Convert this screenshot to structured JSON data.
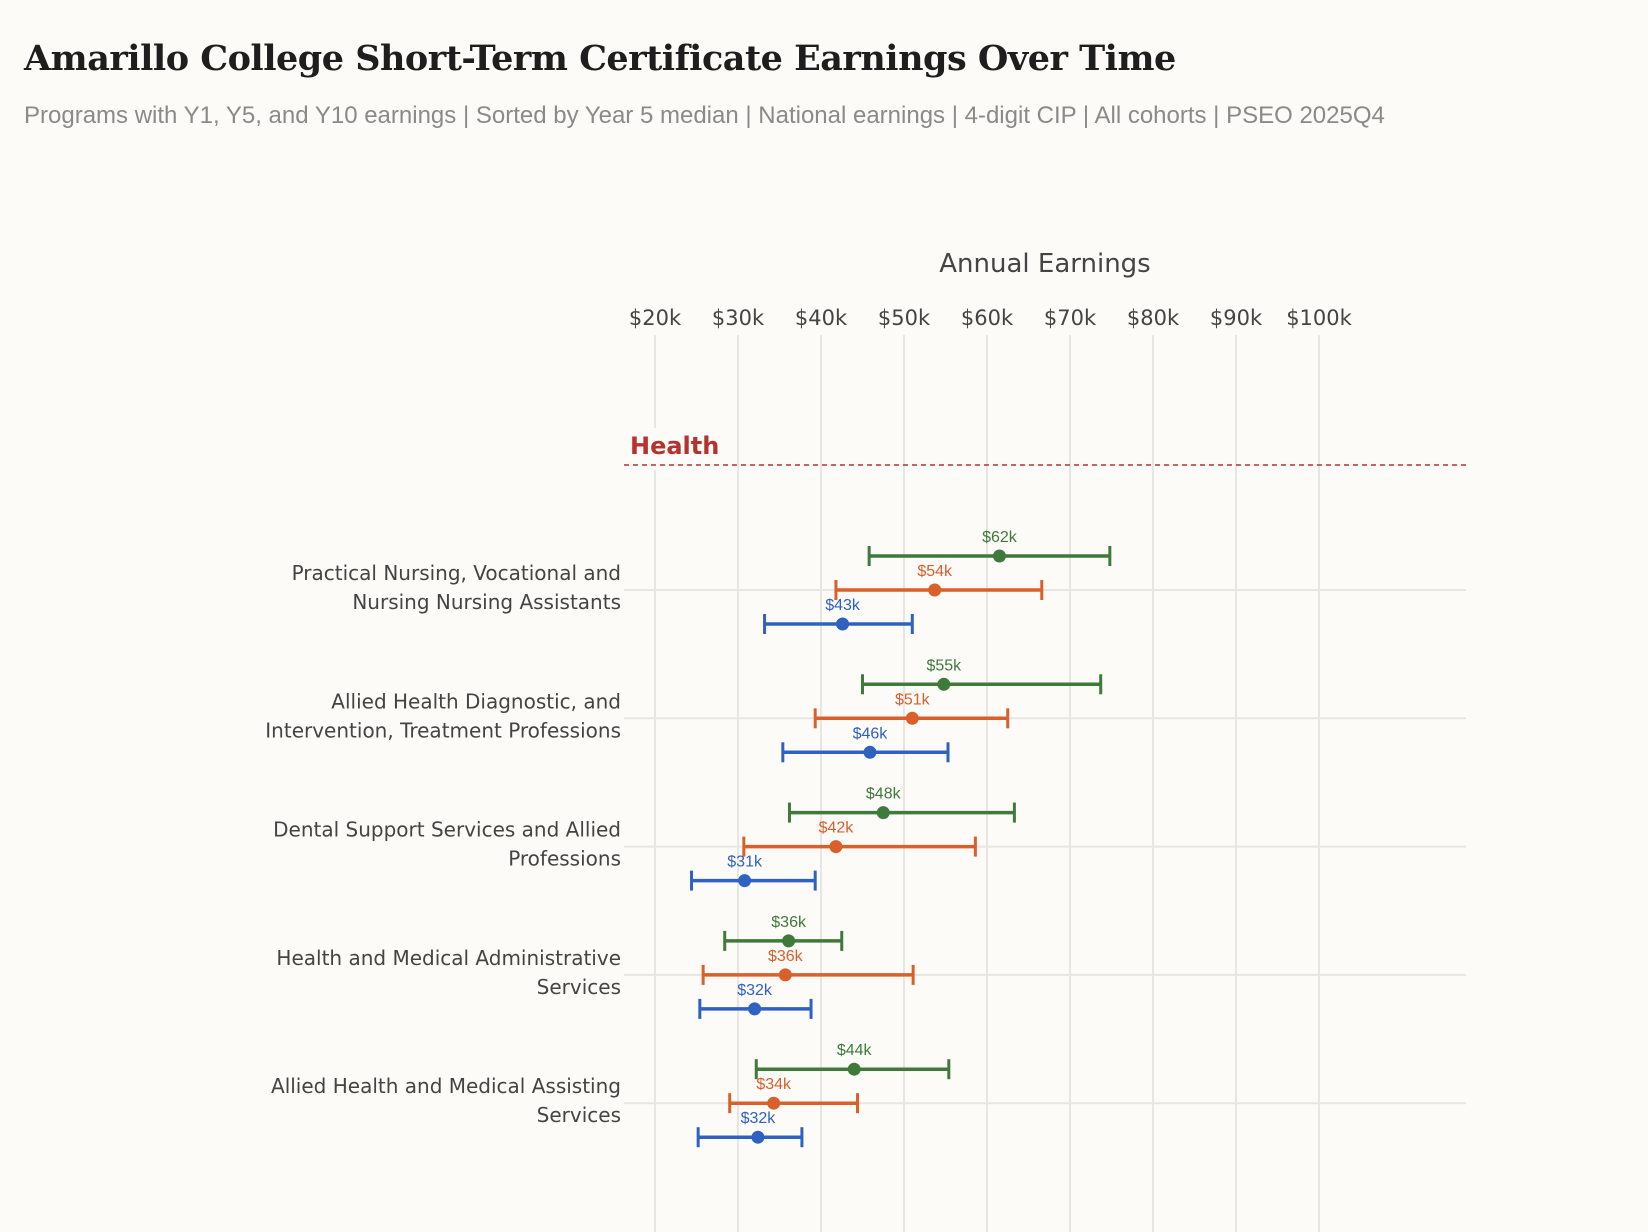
{
  "title": "Amarillo College Short-Term Certificate Earnings Over Time",
  "subtitle": "Programs with Y1, Y5, and Y10 earnings | Sorted by Year 5 median | National earnings | 4-digit CIP | All cohorts | PSEO 2025Q4",
  "chart_data": {
    "type": "errorbar",
    "xlabel": "Annual Earnings",
    "xlim": [
      20000,
      110000
    ],
    "x_ticks": [
      20000,
      30000,
      40000,
      50000,
      60000,
      70000,
      80000,
      90000,
      100000
    ],
    "x_tick_labels": [
      "$20k",
      "$30k",
      "$40k",
      "$50k",
      "$60k",
      "$70k",
      "$80k",
      "$90k",
      "$100k"
    ],
    "x_axis_position": "top",
    "grid": true,
    "group": "Health",
    "colors": {
      "y10": "#3f7a3a",
      "y5": "#d95f2b",
      "y1": "#2f62c0",
      "group": "#b5332e"
    },
    "programs": [
      {
        "label": [
          "Practical Nursing, Vocational and",
          "Nursing Nursing Assistants"
        ],
        "y10": {
          "low": 45800,
          "median": 61500,
          "high": 74800,
          "label": "$62k"
        },
        "y5": {
          "low": 41800,
          "median": 53700,
          "high": 66600,
          "label": "$54k"
        },
        "y1": {
          "low": 33200,
          "median": 42600,
          "high": 51000,
          "label": "$43k"
        }
      },
      {
        "label": [
          "Allied Health Diagnostic, and",
          "Intervention, Treatment Professions"
        ],
        "y10": {
          "low": 45000,
          "median": 54800,
          "high": 73700,
          "label": "$55k"
        },
        "y5": {
          "low": 39300,
          "median": 51000,
          "high": 62500,
          "label": "$51k"
        },
        "y1": {
          "low": 35400,
          "median": 45900,
          "high": 55300,
          "label": "$46k"
        }
      },
      {
        "label": [
          "Dental Support Services and Allied",
          "Professions"
        ],
        "y10": {
          "low": 36200,
          "median": 47500,
          "high": 63300,
          "label": "$48k"
        },
        "y5": {
          "low": 30700,
          "median": 41800,
          "high": 58600,
          "label": "$42k"
        },
        "y1": {
          "low": 24400,
          "median": 30800,
          "high": 39300,
          "label": "$31k"
        }
      },
      {
        "label": [
          "Health and Medical Administrative",
          "Services"
        ],
        "y10": {
          "low": 28400,
          "median": 36100,
          "high": 42500,
          "label": "$36k"
        },
        "y5": {
          "low": 25800,
          "median": 35700,
          "high": 51100,
          "label": "$36k"
        },
        "y1": {
          "low": 25400,
          "median": 32000,
          "high": 38800,
          "label": "$32k"
        }
      },
      {
        "label": [
          "Allied Health and Medical Assisting",
          "Services"
        ],
        "y10": {
          "low": 32200,
          "median": 44000,
          "high": 55400,
          "label": "$44k"
        },
        "y5": {
          "low": 29000,
          "median": 34300,
          "high": 44400,
          "label": "$34k"
        },
        "y1": {
          "low": 25200,
          "median": 32400,
          "high": 37700,
          "label": "$32k"
        }
      }
    ]
  }
}
